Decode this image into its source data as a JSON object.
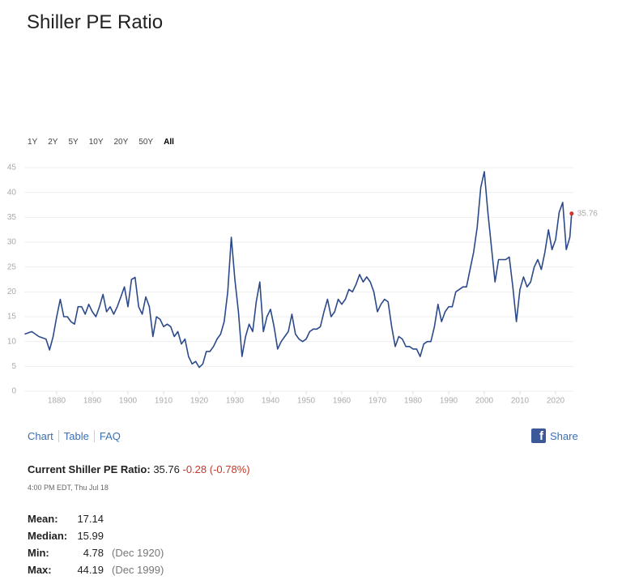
{
  "header": {
    "title": "Shiller PE Ratio"
  },
  "ranges": [
    "1Y",
    "2Y",
    "5Y",
    "10Y",
    "20Y",
    "50Y",
    "All"
  ],
  "chart_data": {
    "type": "line",
    "xlim": [
      1871,
      2025
    ],
    "xticks": [
      1880,
      1890,
      1900,
      1910,
      1920,
      1930,
      1940,
      1950,
      1960,
      1970,
      1980,
      1990,
      2000,
      2010,
      2020
    ],
    "ylim": [
      0,
      45
    ],
    "yticks": [
      0,
      5,
      10,
      15,
      20,
      25,
      30,
      35,
      40,
      45
    ],
    "grid": true,
    "series": [
      {
        "color": "#2c4a8a",
        "x": [
          1871,
          1873,
          1875,
          1877,
          1878,
          1879,
          1880,
          1881,
          1882,
          1883,
          1884,
          1885,
          1886,
          1887,
          1888,
          1889,
          1890,
          1891,
          1892,
          1893,
          1894,
          1895,
          1896,
          1897,
          1898,
          1899,
          1900,
          1901,
          1902,
          1903,
          1904,
          1905,
          1906,
          1907,
          1908,
          1909,
          1910,
          1911,
          1912,
          1913,
          1914,
          1915,
          1916,
          1917,
          1918,
          1919,
          1920,
          1921,
          1922,
          1923,
          1924,
          1925,
          1926,
          1927,
          1928,
          1929,
          1930,
          1931,
          1932,
          1933,
          1934,
          1935,
          1936,
          1937,
          1938,
          1939,
          1940,
          1941,
          1942,
          1943,
          1944,
          1945,
          1946,
          1947,
          1948,
          1949,
          1950,
          1951,
          1952,
          1953,
          1954,
          1955,
          1956,
          1957,
          1958,
          1959,
          1960,
          1961,
          1962,
          1963,
          1964,
          1965,
          1966,
          1967,
          1968,
          1969,
          1970,
          1971,
          1972,
          1973,
          1974,
          1975,
          1976,
          1977,
          1978,
          1979,
          1980,
          1981,
          1982,
          1983,
          1984,
          1985,
          1986,
          1987,
          1988,
          1989,
          1990,
          1991,
          1992,
          1993,
          1994,
          1995,
          1996,
          1997,
          1998,
          1999,
          2000,
          2001,
          2002,
          2003,
          2004,
          2005,
          2006,
          2007,
          2008,
          2009,
          2010,
          2011,
          2012,
          2013,
          2014,
          2015,
          2016,
          2017,
          2018,
          2019,
          2020,
          2021,
          2022,
          2023,
          2024,
          2024.5
        ],
        "values": [
          11.5,
          12,
          11,
          10.5,
          8.3,
          11,
          15,
          18.5,
          15,
          15,
          14,
          13.5,
          17,
          17,
          15.5,
          17.5,
          16,
          15,
          17,
          19.5,
          16,
          17,
          15.5,
          17,
          19,
          21,
          17,
          22.5,
          22.9,
          17,
          15.5,
          19,
          17,
          11,
          15,
          14.5,
          13,
          13.5,
          13,
          11,
          12,
          9.5,
          10.5,
          7,
          5.5,
          6,
          4.8,
          5.5,
          8,
          8,
          9,
          10.5,
          11.5,
          14,
          20,
          31,
          22.5,
          16,
          7,
          11,
          13.5,
          12,
          18,
          22,
          12,
          15,
          16.5,
          13,
          8.5,
          10,
          11,
          12,
          15.5,
          11.5,
          10.5,
          10,
          10.5,
          12,
          12.5,
          12.5,
          13,
          16,
          18.5,
          15,
          16,
          18.5,
          17.5,
          18.5,
          20.5,
          20,
          21.5,
          23.5,
          22,
          23,
          22,
          20,
          16,
          17.5,
          18.5,
          18,
          13,
          9,
          11,
          10.5,
          9,
          9,
          8.5,
          8.5,
          7,
          9.5,
          10,
          10,
          13,
          17.5,
          14,
          16,
          17,
          17,
          20,
          20.5,
          21,
          21,
          24.5,
          28,
          33,
          41,
          44.2,
          36,
          29,
          22,
          26.5,
          26.5,
          26.5,
          27,
          21,
          14,
          20.5,
          23,
          21,
          22,
          25,
          26.5,
          24.5,
          28,
          32.5,
          28.5,
          30.5,
          36,
          38,
          28.5,
          31,
          35.76
        ]
      }
    ]
  },
  "tabs": [
    "Chart",
    "Table",
    "FAQ"
  ],
  "share": "Share",
  "current": {
    "label": "Current Shiller PE Ratio:",
    "value": "35.76",
    "change": "-0.28 (-0.78%)",
    "timestamp": "4:00 PM EDT, Thu Jul 18"
  },
  "stats": [
    [
      "Mean:",
      "17.14",
      ""
    ],
    [
      "Median:",
      "15.99",
      ""
    ],
    [
      "Min:",
      "4.78",
      "(Dec 1920)"
    ],
    [
      "Max:",
      "44.19",
      "(Dec 1999)"
    ]
  ]
}
